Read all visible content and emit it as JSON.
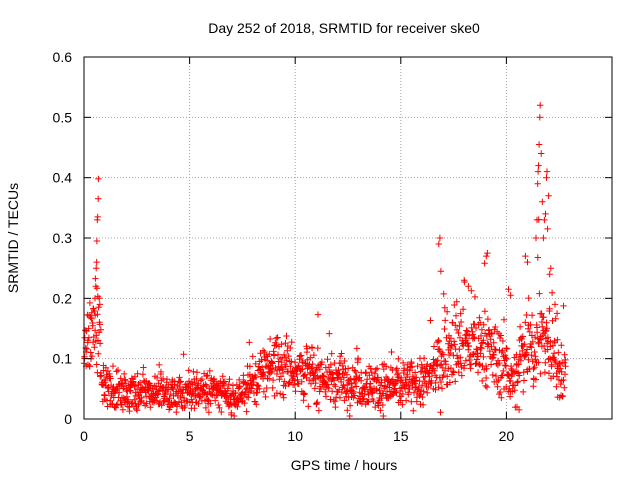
{
  "chart_data": {
    "type": "scatter",
    "title": "Day 252 of 2018, SRMTID for receiver ske0",
    "xlabel": "GPS time / hours",
    "ylabel": "SRMTID / TECUs",
    "xlim": [
      0,
      25
    ],
    "ylim": [
      0,
      0.6
    ],
    "xticks": [
      0,
      5,
      10,
      15,
      20
    ],
    "yticks": [
      0,
      0.1,
      0.2,
      0.3,
      0.4,
      0.5,
      0.6
    ],
    "xtick_labels": [
      "0",
      "5",
      "10",
      "15",
      "20"
    ],
    "ytick_labels": [
      "0",
      "0.1",
      "0.2",
      "0.3",
      "0.4",
      "0.5",
      "0.6"
    ],
    "grid": true,
    "marker": "+",
    "series": [
      {
        "name": "SRMTID",
        "color": "#ff0000",
        "profile": {
          "x": [
            0.0,
            0.2,
            0.4,
            0.7,
            0.8,
            1.0,
            1.5,
            2.0,
            3.0,
            4.0,
            4.5,
            5.0,
            6.0,
            6.5,
            7.0,
            7.5,
            8.0,
            8.5,
            9.0,
            9.5,
            10.0,
            11.0,
            12.0,
            13.0,
            14.0,
            15.0,
            16.0,
            16.5,
            17.0,
            17.5,
            18.0,
            18.5,
            19.0,
            19.5,
            20.0,
            20.3,
            20.5,
            20.7,
            21.0,
            21.3,
            21.5,
            21.8,
            22.0,
            22.3,
            22.5,
            22.8
          ],
          "y": [
            0.11,
            0.14,
            0.15,
            0.17,
            0.08,
            0.06,
            0.045,
            0.045,
            0.045,
            0.04,
            0.04,
            0.045,
            0.05,
            0.04,
            0.03,
            0.04,
            0.06,
            0.08,
            0.095,
            0.09,
            0.085,
            0.07,
            0.065,
            0.06,
            0.055,
            0.055,
            0.06,
            0.07,
            0.11,
            0.12,
            0.12,
            0.12,
            0.11,
            0.1,
            0.09,
            0.06,
            0.07,
            0.11,
            0.13,
            0.09,
            0.15,
            0.13,
            0.11,
            0.1,
            0.08,
            0.07
          ]
        },
        "spikes": [
          {
            "x": 0.52,
            "y": 0.2
          },
          {
            "x": 0.56,
            "y": 0.22
          },
          {
            "x": 0.58,
            "y": 0.25
          },
          {
            "x": 0.6,
            "y": 0.26
          },
          {
            "x": 0.61,
            "y": 0.295
          },
          {
            "x": 0.63,
            "y": 0.33
          },
          {
            "x": 0.65,
            "y": 0.335
          },
          {
            "x": 0.67,
            "y": 0.365
          },
          {
            "x": 0.68,
            "y": 0.398
          },
          {
            "x": 0.72,
            "y": 0.2
          },
          {
            "x": 0.75,
            "y": 0.19
          },
          {
            "x": 16.8,
            "y": 0.29
          },
          {
            "x": 16.85,
            "y": 0.3
          },
          {
            "x": 16.9,
            "y": 0.245
          },
          {
            "x": 18.0,
            "y": 0.23
          },
          {
            "x": 18.2,
            "y": 0.22
          },
          {
            "x": 19.05,
            "y": 0.27
          },
          {
            "x": 19.1,
            "y": 0.275
          },
          {
            "x": 20.1,
            "y": 0.215
          },
          {
            "x": 20.2,
            "y": 0.205
          },
          {
            "x": 20.9,
            "y": 0.27
          },
          {
            "x": 21.0,
            "y": 0.26
          },
          {
            "x": 20.5,
            "y": 0.02
          },
          {
            "x": 20.6,
            "y": 0.015
          },
          {
            "x": 21.4,
            "y": 0.3
          },
          {
            "x": 21.45,
            "y": 0.33
          },
          {
            "x": 21.48,
            "y": 0.39
          },
          {
            "x": 21.5,
            "y": 0.41
          },
          {
            "x": 21.52,
            "y": 0.42
          },
          {
            "x": 21.55,
            "y": 0.455
          },
          {
            "x": 21.58,
            "y": 0.5
          },
          {
            "x": 21.6,
            "y": 0.52
          },
          {
            "x": 21.65,
            "y": 0.44
          },
          {
            "x": 21.7,
            "y": 0.36
          },
          {
            "x": 21.75,
            "y": 0.3
          },
          {
            "x": 21.8,
            "y": 0.33
          },
          {
            "x": 21.85,
            "y": 0.34
          },
          {
            "x": 21.9,
            "y": 0.4
          },
          {
            "x": 21.92,
            "y": 0.41
          },
          {
            "x": 21.95,
            "y": 0.315
          },
          {
            "x": 22.0,
            "y": 0.37
          },
          {
            "x": 22.05,
            "y": 0.24
          },
          {
            "x": 22.1,
            "y": 0.25
          },
          {
            "x": 22.3,
            "y": 0.19
          },
          {
            "x": 22.4,
            "y": 0.175
          }
        ]
      }
    ]
  }
}
